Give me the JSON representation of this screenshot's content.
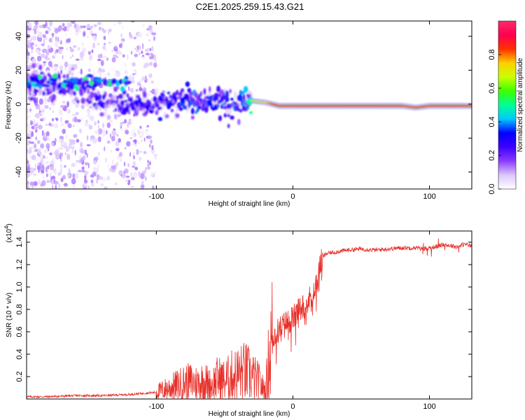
{
  "figure_title": "C2E1.2025.259.15.43.G21",
  "chart_data": [
    {
      "type": "heatmap",
      "title": "C2E1.2025.259.15.43.G21",
      "xlabel": "Height of straight line (km)",
      "ylabel": "Frequency (Hz)",
      "xlim": [
        -195,
        131
      ],
      "ylim": [
        -50,
        49
      ],
      "xticks": [
        -100,
        0,
        100
      ],
      "xtick_labels": [
        "-100",
        "0",
        "100"
      ],
      "yticks": [
        -40,
        -20,
        0,
        20,
        40
      ],
      "ytick_labels": [
        "-40",
        "-20",
        "0",
        "20",
        "40"
      ],
      "colorbar": {
        "label": "Normalized spectral amplitude",
        "range": [
          0,
          1
        ],
        "ticks": [
          0,
          0.2,
          0.4,
          0.6,
          0.8
        ],
        "tick_labels": [
          "0.0",
          "0.2",
          "0.4",
          "0.6",
          "0.8"
        ],
        "colormap": [
          "#ffffff",
          "#dcc6ff",
          "#8a3dff",
          "#3d00ff",
          "#0000ff",
          "#00c8ff",
          "#00ff96",
          "#3cff00",
          "#c8ff00",
          "#ffd000",
          "#ff3000",
          "#ff0050",
          "#ff2a6a"
        ]
      },
      "main_ridge": {
        "x": [
          -195,
          -180,
          -170,
          -160,
          -150,
          -140,
          -130,
          -120,
          -110,
          -100,
          -90,
          -80,
          -70,
          -60,
          -50,
          -40,
          -35,
          -30,
          -20,
          -10,
          0,
          10,
          20,
          30,
          40,
          50,
          60,
          70,
          80,
          90,
          100,
          110,
          120,
          131
        ],
        "freq": [
          12,
          11,
          10,
          9,
          7,
          3,
          1,
          0,
          -1,
          -1,
          0,
          1,
          2,
          2,
          1,
          -1,
          0,
          2,
          1,
          -1,
          -1,
          -1,
          -1,
          -1,
          -1,
          -1,
          -1,
          -1,
          -1,
          -2,
          -1,
          -1,
          -1,
          -1
        ],
        "amplitude": [
          0.3,
          0.3,
          0.35,
          0.35,
          0.35,
          0.35,
          0.3,
          0.32,
          0.35,
          0.4,
          0.4,
          0.42,
          0.45,
          0.45,
          0.5,
          0.45,
          0.5,
          0.65,
          0.75,
          0.9,
          0.92,
          0.92,
          0.92,
          0.92,
          0.9,
          0.9,
          0.9,
          0.92,
          0.9,
          0.85,
          0.9,
          0.92,
          0.92,
          0.9
        ]
      },
      "secondary_band": {
        "x_range": [
          -195,
          -120
        ],
        "freq": 13
      },
      "scatter_noise_region": {
        "x_range": [
          -195,
          -100
        ],
        "freq_range": [
          -50,
          49
        ]
      }
    },
    {
      "type": "line",
      "xlabel": "Height of straight line (km)",
      "ylabel": "SNR (10 * v/v)",
      "y_multiplier": "(x10",
      "y_multiplier_exp": "4",
      "y_multiplier_close": ")",
      "xlim": [
        -195,
        131
      ],
      "ylim": [
        0,
        1.5
      ],
      "xticks": [
        -100,
        0,
        100
      ],
      "xtick_labels": [
        "-100",
        "0",
        "100"
      ],
      "yticks": [
        0.2,
        0.4,
        0.6,
        0.8,
        1.0,
        1.2,
        1.4
      ],
      "ytick_labels": [
        "0.2",
        "0.4",
        "0.6",
        "0.8",
        "1.0",
        "1.2",
        "1.4"
      ],
      "color": "#e8302a",
      "series": [
        {
          "x": [
            -195,
            -180,
            -160,
            -140,
            -120,
            -110,
            -100,
            -95,
            -90,
            -85,
            -80,
            -75,
            -70,
            -65,
            -60,
            -55,
            -50,
            -45,
            -40,
            -35,
            -30,
            -25,
            -22,
            -20,
            -18,
            -15,
            -10,
            -5,
            0,
            5,
            10,
            15,
            18,
            20,
            22,
            25,
            30,
            40,
            50,
            60,
            70,
            80,
            90,
            95,
            100,
            105,
            110,
            115,
            120,
            125,
            131
          ],
          "y": [
            0.02,
            0.02,
            0.03,
            0.03,
            0.04,
            0.05,
            0.06,
            0.08,
            0.1,
            0.12,
            0.14,
            0.15,
            0.14,
            0.16,
            0.12,
            0.18,
            0.16,
            0.2,
            0.22,
            0.24,
            0.2,
            0.15,
            0.1,
            0.08,
            0.3,
            0.55,
            0.62,
            0.68,
            0.72,
            0.8,
            0.85,
            0.95,
            1.05,
            1.2,
            1.27,
            1.3,
            1.31,
            1.33,
            1.34,
            1.33,
            1.34,
            1.35,
            1.35,
            1.34,
            1.35,
            1.36,
            1.38,
            1.37,
            1.36,
            1.38,
            1.37
          ]
        }
      ]
    }
  ]
}
